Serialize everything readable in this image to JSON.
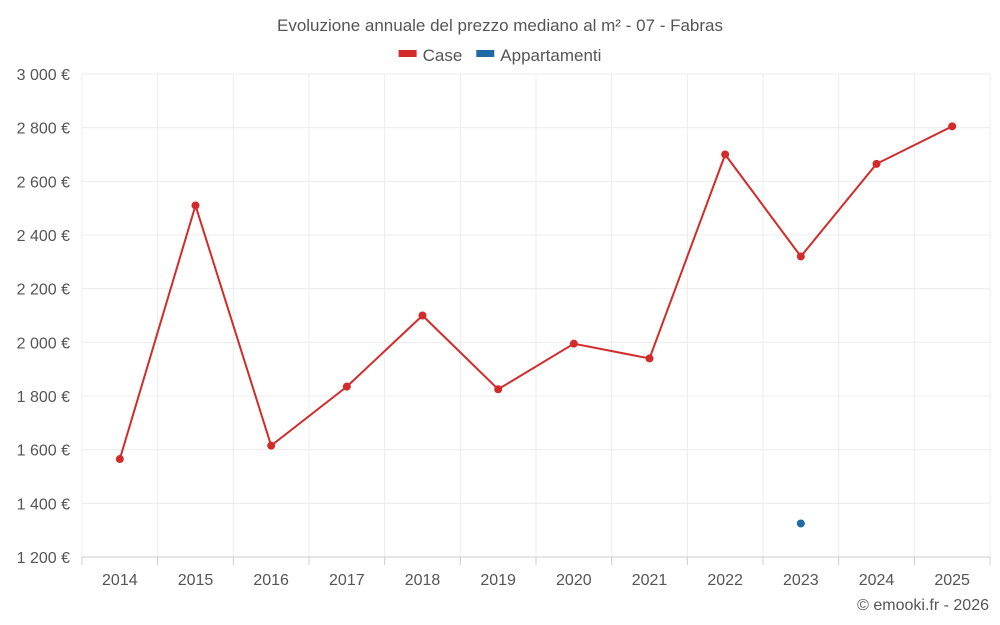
{
  "chart_data": {
    "type": "line",
    "title": "Evoluzione annuale del prezzo mediano al m² - 07 - Fabras",
    "categories": [
      "2014",
      "2015",
      "2016",
      "2017",
      "2018",
      "2019",
      "2020",
      "2021",
      "2022",
      "2023",
      "2024",
      "2025"
    ],
    "series": [
      {
        "name": "Case",
        "color": "#d32a2a",
        "values": [
          1565,
          2510,
          1615,
          1835,
          2100,
          1825,
          1995,
          1940,
          2700,
          2320,
          2665,
          2805
        ]
      },
      {
        "name": "Appartamenti",
        "color": "#1f6aa5",
        "values": [
          null,
          null,
          null,
          null,
          null,
          null,
          null,
          null,
          null,
          1325,
          null,
          null
        ]
      }
    ],
    "ylim": [
      1200,
      3000
    ],
    "yticks": [
      1200,
      1400,
      1600,
      1800,
      2000,
      2200,
      2400,
      2600,
      2800,
      3000
    ],
    "ytick_labels": [
      "1 200 €",
      "1 400 €",
      "1 600 €",
      "1 800 €",
      "2 000 €",
      "2 200 €",
      "2 400 €",
      "2 600 €",
      "2 800 €",
      "3 000 €"
    ],
    "xlabel": "",
    "ylabel": "",
    "grid": true,
    "legend": "top-center"
  },
  "credit": "© emooki.fr - 2026"
}
